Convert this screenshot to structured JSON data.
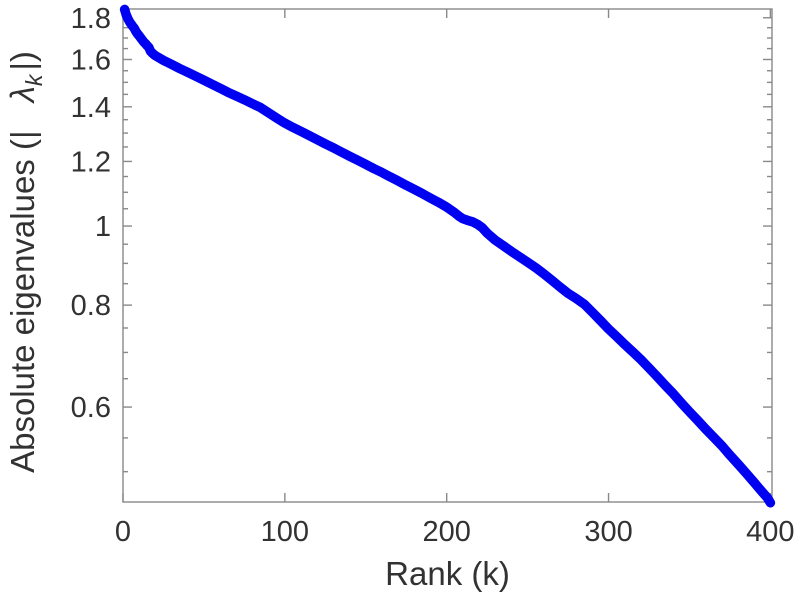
{
  "figure": {
    "xlabel": "Rank (k)",
    "ylabel": {
      "prefix": "Absolute eigenvalues (|",
      "symbol": "λ",
      "subscript": "k",
      "suffix": "|)"
    }
  },
  "chart_data": {
    "type": "line",
    "title": "",
    "xlabel": "Rank (k)",
    "ylabel": "Absolute eigenvalues (|lambda_k|)",
    "y_scale": "log",
    "grid": false,
    "legend": null,
    "xlim": [
      0,
      401
    ],
    "ylim": [
      0.459,
      1.845
    ],
    "x_ticks": [
      0,
      100,
      200,
      300,
      400
    ],
    "x_tick_labels": [
      "0",
      "100",
      "200",
      "300",
      "400"
    ],
    "y_ticks": [
      0.6,
      0.8,
      1,
      1.2,
      1.4,
      1.6,
      1.8
    ],
    "y_tick_labels": [
      "0.6",
      "0.8",
      "1",
      "1.2",
      "1.4",
      "1.6",
      "1.8"
    ],
    "y_minor_ticks": [
      1.75,
      1.7,
      1.65,
      1.55,
      1.5,
      1.45,
      1.35,
      1.3,
      1.25,
      1.15,
      1.1,
      1.05,
      0.95,
      0.9,
      0.85,
      0.75,
      0.7,
      0.65,
      0.55,
      0.5
    ],
    "line_color": "#0101f2",
    "line_width": 9.5,
    "axis_color": "#898989",
    "text_color": "#323232",
    "style_note": "thick solid blue curve of densely plotted eigenvalue magnitudes, boxed axes with inward mirrored ticks, logarithmic y-axis",
    "series": [
      {
        "name": "absolute eigenvalues |lambda_k|",
        "x": [
          1,
          2,
          3,
          4,
          5,
          6,
          7,
          8,
          9,
          10,
          11,
          12,
          13,
          14,
          15,
          16,
          17,
          18,
          19,
          20,
          25,
          30,
          35,
          40,
          45,
          50,
          55,
          60,
          65,
          70,
          75,
          80,
          85,
          90,
          95,
          100,
          105,
          110,
          115,
          120,
          125,
          130,
          135,
          140,
          145,
          150,
          155,
          160,
          165,
          170,
          175,
          180,
          185,
          190,
          195,
          200,
          205,
          208,
          210,
          213,
          216,
          219,
          222,
          225,
          230,
          235,
          240,
          245,
          250,
          255,
          260,
          265,
          270,
          275,
          280,
          285,
          290,
          295,
          300,
          305,
          310,
          315,
          320,
          325,
          330,
          335,
          340,
          345,
          350,
          355,
          360,
          365,
          370,
          375,
          380,
          385,
          390,
          395,
          398,
          400
        ],
        "y": [
          1.843,
          1.815,
          1.795,
          1.78,
          1.768,
          1.757,
          1.747,
          1.732,
          1.72,
          1.71,
          1.7,
          1.69,
          1.68,
          1.672,
          1.663,
          1.655,
          1.638,
          1.63,
          1.623,
          1.617,
          1.596,
          1.578,
          1.56,
          1.543,
          1.526,
          1.509,
          1.492,
          1.475,
          1.458,
          1.443,
          1.428,
          1.412,
          1.397,
          1.376,
          1.356,
          1.337,
          1.321,
          1.306,
          1.291,
          1.276,
          1.261,
          1.247,
          1.232,
          1.218,
          1.204,
          1.19,
          1.176,
          1.163,
          1.149,
          1.136,
          1.122,
          1.109,
          1.096,
          1.082,
          1.069,
          1.055,
          1.038,
          1.027,
          1.021,
          1.016,
          1.012,
          1.005,
          0.995,
          0.98,
          0.961,
          0.946,
          0.931,
          0.917,
          0.903,
          0.889,
          0.874,
          0.858,
          0.842,
          0.827,
          0.815,
          0.802,
          0.784,
          0.766,
          0.748,
          0.732,
          0.716,
          0.701,
          0.686,
          0.67,
          0.654,
          0.638,
          0.623,
          0.607,
          0.592,
          0.578,
          0.564,
          0.551,
          0.538,
          0.524,
          0.511,
          0.498,
          0.485,
          0.472,
          0.465,
          0.458
        ]
      }
    ]
  }
}
